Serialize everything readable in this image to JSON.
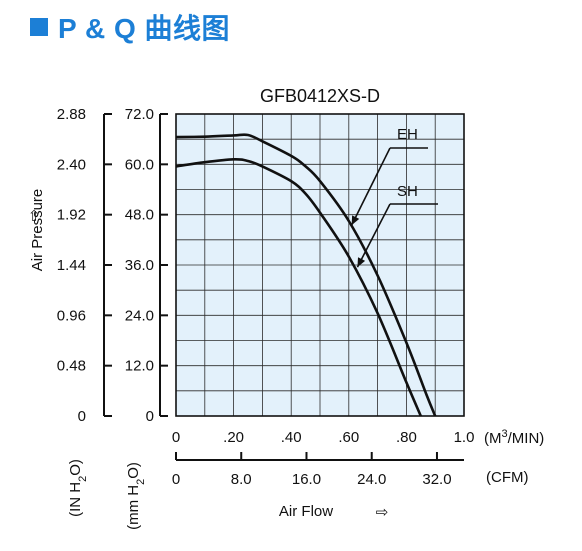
{
  "header": {
    "title": "P & Q 曲线图",
    "accent_color": "#1c7fd6"
  },
  "chart_data": {
    "type": "line",
    "title": "GFB0412XS-D",
    "plot_background": "#e3f1fb",
    "grid": true,
    "x_primary": {
      "unit": "(M3/MIN)",
      "unit_base": "(M",
      "unit_sup": "3",
      "unit_tail": "/MIN)",
      "range": [
        0,
        1.0
      ],
      "ticks": [
        {
          "v": 0,
          "label": "0"
        },
        {
          "v": 0.2,
          "label": ".20"
        },
        {
          "v": 0.4,
          "label": ".40"
        },
        {
          "v": 0.6,
          "label": ".60"
        },
        {
          "v": 0.8,
          "label": ".80"
        },
        {
          "v": 1.0,
          "label": "1.0"
        }
      ]
    },
    "x_secondary": {
      "unit": "(CFM)",
      "ticks": [
        {
          "v": 0,
          "label": "0"
        },
        {
          "v": 8,
          "label": "8.0"
        },
        {
          "v": 16,
          "label": "16.0"
        },
        {
          "v": 24,
          "label": "24.0"
        },
        {
          "v": 32,
          "label": "32.0"
        }
      ]
    },
    "xlabel": "Air Flow",
    "xlabel_arrow": "⇨",
    "y_primary": {
      "unit_base": "(mm H",
      "unit_sub": "2",
      "unit_tail": "O)",
      "range": [
        0,
        72
      ],
      "ticks": [
        {
          "v": 0,
          "label": "0"
        },
        {
          "v": 12,
          "label": "12.0"
        },
        {
          "v": 24,
          "label": "24.0"
        },
        {
          "v": 36,
          "label": "36.0"
        },
        {
          "v": 48,
          "label": "48.0"
        },
        {
          "v": 60,
          "label": "60.0"
        },
        {
          "v": 72,
          "label": "72.0"
        }
      ]
    },
    "y_secondary": {
      "unit_base": "(IN H",
      "unit_sub": "2",
      "unit_tail": "O)",
      "ticks": [
        {
          "label": "0"
        },
        {
          "label": "0.48"
        },
        {
          "label": "0.96"
        },
        {
          "label": "1.44"
        },
        {
          "label": "1.92"
        },
        {
          "label": "2.40"
        },
        {
          "label": "2.88"
        }
      ]
    },
    "ylabel": "Air Pressure",
    "ylabel_arrow": "⇧",
    "series": [
      {
        "name": "EH",
        "color": "#111111",
        "points": [
          [
            0,
            66.5
          ],
          [
            0.1,
            66.6
          ],
          [
            0.2,
            66.9
          ],
          [
            0.25,
            67
          ],
          [
            0.3,
            65.5
          ],
          [
            0.4,
            62
          ],
          [
            0.45,
            59.5
          ],
          [
            0.5,
            56
          ],
          [
            0.6,
            46.5
          ],
          [
            0.7,
            33.5
          ],
          [
            0.8,
            17.5
          ],
          [
            0.87,
            5
          ],
          [
            0.9,
            0
          ]
        ]
      },
      {
        "name": "SH",
        "color": "#111111",
        "points": [
          [
            0,
            59.5
          ],
          [
            0.1,
            60.5
          ],
          [
            0.2,
            61.2
          ],
          [
            0.25,
            60.8
          ],
          [
            0.3,
            59.5
          ],
          [
            0.4,
            56
          ],
          [
            0.45,
            53
          ],
          [
            0.5,
            48.5
          ],
          [
            0.6,
            38
          ],
          [
            0.7,
            24.5
          ],
          [
            0.8,
            8
          ],
          [
            0.85,
            0
          ]
        ]
      }
    ]
  }
}
